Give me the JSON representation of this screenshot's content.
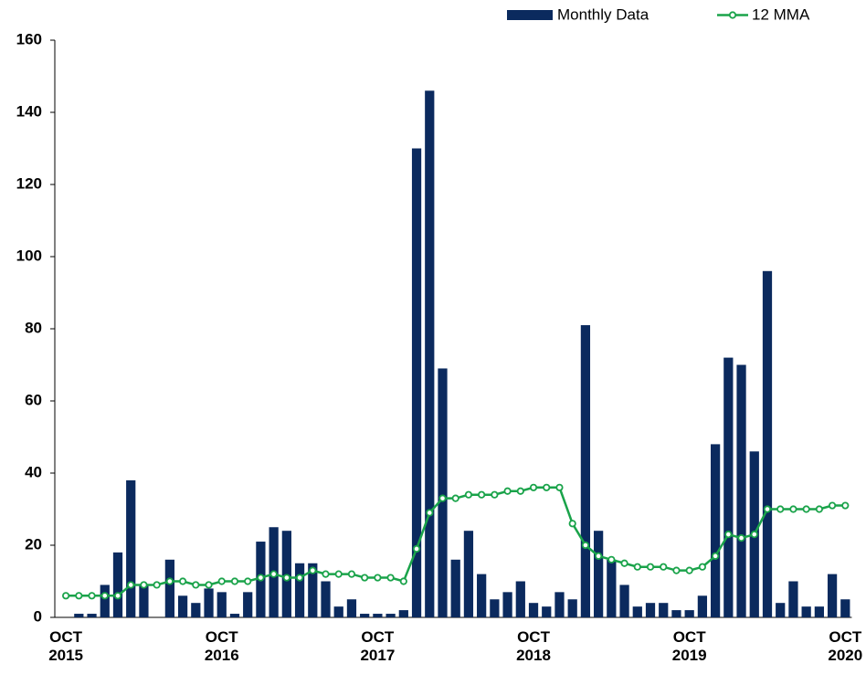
{
  "chart_data": {
    "type": "bar_line",
    "categories": [
      "OCT 2015",
      null,
      null,
      null,
      null,
      null,
      null,
      null,
      null,
      null,
      null,
      null,
      "OCT 2016",
      null,
      null,
      null,
      null,
      null,
      null,
      null,
      null,
      null,
      null,
      null,
      "OCT 2017",
      null,
      null,
      null,
      null,
      null,
      null,
      null,
      null,
      null,
      null,
      null,
      "OCT 2018",
      null,
      null,
      null,
      null,
      null,
      null,
      null,
      null,
      null,
      null,
      null,
      "OCT 2019",
      null,
      null,
      null,
      null,
      null,
      null,
      null,
      null,
      null,
      null,
      null,
      "OCT 2020"
    ],
    "series": [
      {
        "name": "Monthly Data",
        "type": "bar",
        "color": "#0b2a5e",
        "values": [
          0,
          1,
          1,
          9,
          18,
          38,
          9,
          0,
          16,
          6,
          4,
          8,
          7,
          1,
          7,
          21,
          25,
          24,
          15,
          15,
          10,
          3,
          5,
          1,
          1,
          1,
          2,
          130,
          146,
          69,
          16,
          24,
          12,
          5,
          7,
          10,
          4,
          3,
          7,
          5,
          81,
          24,
          16,
          9,
          3,
          4,
          4,
          2,
          2,
          6,
          48,
          72,
          70,
          46,
          96,
          4,
          10,
          3,
          3,
          12,
          5
        ]
      },
      {
        "name": "12 MMA",
        "type": "line",
        "color": "#1aa34a",
        "values": [
          6,
          6,
          6,
          6,
          6,
          9,
          9,
          9,
          10,
          10,
          9,
          9,
          10,
          10,
          10,
          11,
          12,
          11,
          11,
          13,
          12,
          12,
          12,
          11,
          11,
          11,
          10,
          19,
          29,
          33,
          33,
          34,
          34,
          34,
          35,
          35,
          36,
          36,
          36,
          26,
          20,
          17,
          16,
          15,
          14,
          14,
          14,
          13,
          13,
          14,
          17,
          23,
          22,
          23,
          30,
          30,
          30,
          30,
          30,
          31,
          31
        ]
      }
    ],
    "ylim": [
      0,
      160
    ],
    "yticks": [
      0,
      20,
      40,
      60,
      80,
      100,
      120,
      140,
      160
    ],
    "grid": false,
    "legend": "top-right"
  }
}
